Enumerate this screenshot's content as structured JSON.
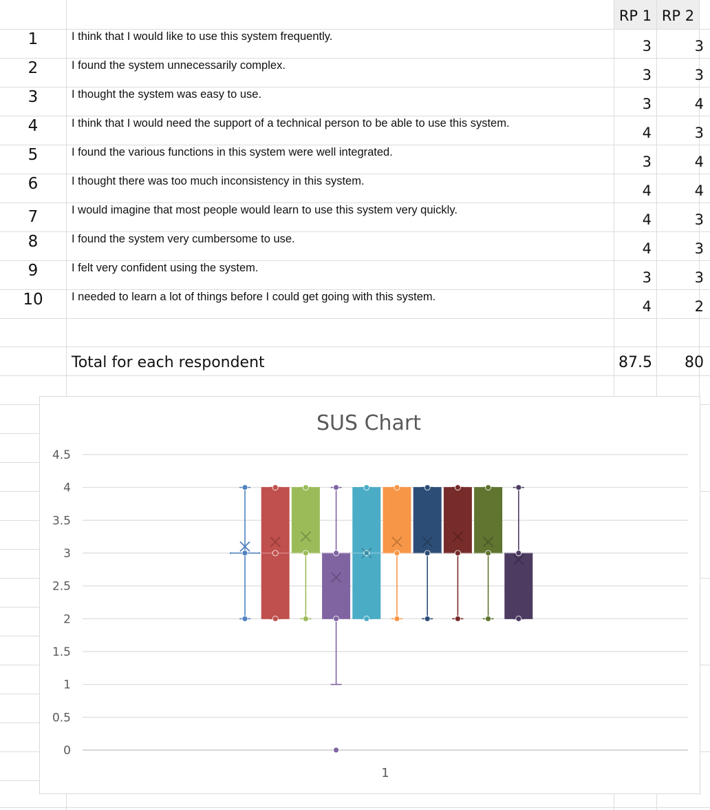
{
  "sheet": {
    "col_headers": [
      "RP 1",
      "RP 2"
    ],
    "rows": [
      {
        "num": "1",
        "text": "I think that I would like to use this system frequently.",
        "rp1": "3",
        "rp2": "3"
      },
      {
        "num": "2",
        "text": "I found the system unnecessarily complex.",
        "rp1": "3",
        "rp2": "3"
      },
      {
        "num": "3",
        "text": "I thought the system was easy to use.",
        "rp1": "3",
        "rp2": "4"
      },
      {
        "num": "4",
        "text": "I think that I would need the support of a technical person to be able to use this system.",
        "rp1": "4",
        "rp2": "3"
      },
      {
        "num": "5",
        "text": "I found the various functions in this system were well integrated.",
        "rp1": "3",
        "rp2": "4"
      },
      {
        "num": "6",
        "text": "I thought there was too much inconsistency in this system.",
        "rp1": "4",
        "rp2": "4"
      },
      {
        "num": "7",
        "text": "I would imagine that most people would learn to use this system very quickly.",
        "rp1": "4",
        "rp2": "3"
      },
      {
        "num": "8",
        "text": "I found the system very cumbersome to use.",
        "rp1": "4",
        "rp2": "3"
      },
      {
        "num": "9",
        "text": "I felt very confident using the system.",
        "rp1": "3",
        "rp2": "3"
      },
      {
        "num": "10",
        "text": "I needed to learn a lot of things before I could get going with this system.",
        "rp1": "4",
        "rp2": "2"
      }
    ],
    "total_label": "Total for each respondent",
    "total_rp1": "87.5",
    "total_rp2": "80"
  },
  "chart_data": {
    "type": "boxplot",
    "title": "SUS Chart",
    "categories": [
      "1"
    ],
    "ylim": [
      0,
      4.5
    ],
    "yticks": [
      "0",
      "0.5",
      "1",
      "1.5",
      "2",
      "2.5",
      "3",
      "3.5",
      "4",
      "4.5"
    ],
    "grid": true,
    "legend": "none",
    "boxes": [
      {
        "color": "#4f81bd",
        "min": 2,
        "q1": 3,
        "median": 3,
        "q3": 3,
        "max": 4,
        "mean": 3.1,
        "points": [
          2,
          3,
          4
        ]
      },
      {
        "color": "#c0504d",
        "min": 2,
        "q1": 2,
        "median": 3,
        "q3": 4,
        "max": 4,
        "mean": 3.17,
        "points": [
          2,
          3,
          4
        ]
      },
      {
        "color": "#9bbb59",
        "min": 2,
        "q1": 3,
        "median": 3,
        "q3": 4,
        "max": 4,
        "mean": 3.25,
        "points": [
          2,
          3,
          4
        ]
      },
      {
        "color": "#8064a2",
        "min": 1,
        "q1": 2,
        "median": 3,
        "q3": 3,
        "max": 4,
        "mean": 2.63,
        "points": [
          0,
          2,
          3,
          4
        ]
      },
      {
        "color": "#4bacc6",
        "min": 2,
        "q1": 2,
        "median": 3,
        "q3": 4,
        "max": 4,
        "mean": 3.0,
        "points": [
          2,
          3,
          4
        ]
      },
      {
        "color": "#f79646",
        "min": 2,
        "q1": 3,
        "median": 3,
        "q3": 4,
        "max": 4,
        "mean": 3.17,
        "points": [
          2,
          3,
          4
        ]
      },
      {
        "color": "#2c4d75",
        "min": 2,
        "q1": 3,
        "median": 3,
        "q3": 4,
        "max": 4,
        "mean": 3.17,
        "points": [
          2,
          3,
          4
        ]
      },
      {
        "color": "#772c2a",
        "min": 2,
        "q1": 3,
        "median": 3,
        "q3": 4,
        "max": 4,
        "mean": 3.25,
        "points": [
          2,
          3,
          4
        ]
      },
      {
        "color": "#5f7530",
        "min": 2,
        "q1": 3,
        "median": 3,
        "q3": 4,
        "max": 4,
        "mean": 3.17,
        "points": [
          2,
          3,
          4
        ]
      },
      {
        "color": "#4d3b62",
        "min": 2,
        "q1": 2,
        "median": 3,
        "q3": 3,
        "max": 4,
        "mean": 2.9,
        "points": [
          2,
          3,
          4
        ]
      }
    ]
  }
}
